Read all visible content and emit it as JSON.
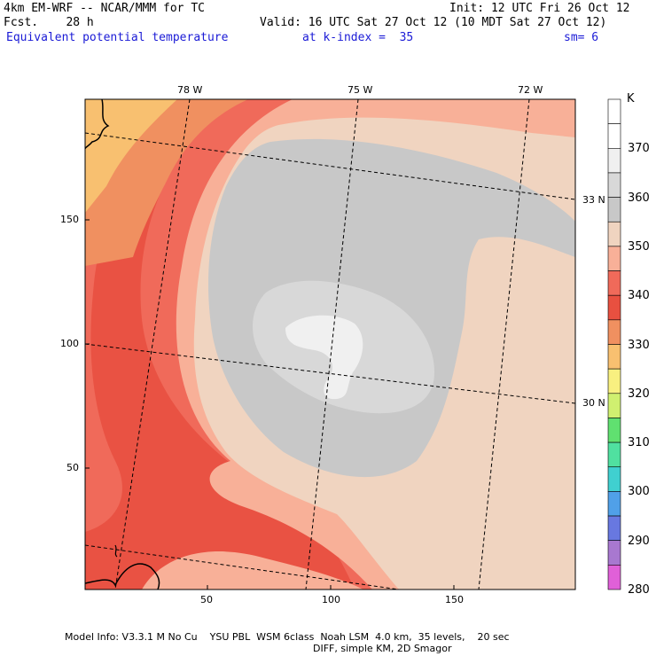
{
  "header": {
    "model": "4km EM-WRF -- NCAR/MMM for TC",
    "init": "Init: 12 UTC Fri 26 Oct 12",
    "fcst": "Fcst.    28 h",
    "valid": "Valid: 16 UTC Sat 27 Oct 12 (10 MDT Sat 27 Oct 12)",
    "field": "Equivalent potential temperature",
    "level": "at k-index =  35",
    "smooth": "sm= 6"
  },
  "map": {
    "lon_labels": [
      "78 W",
      "75 W",
      "72 W"
    ],
    "lat_labels": [
      "33 N",
      "30 N"
    ],
    "x_ticks": [
      "50",
      "100",
      "150"
    ],
    "y_ticks": [
      "150",
      "100",
      "50"
    ]
  },
  "colorbar": {
    "unit": "K",
    "labels": [
      "370",
      "360",
      "350",
      "340",
      "330",
      "320",
      "310",
      "300",
      "290",
      "280"
    ],
    "colors": [
      "#ffffff",
      "#ffffff",
      "#f0f0f0",
      "#d8d8d8",
      "#c8c8c8",
      "#f0d4c0",
      "#f8b098",
      "#f06a5a",
      "#e85040",
      "#f09060",
      "#f8c070",
      "#f8f080",
      "#d0f070",
      "#60e070",
      "#50e0a0",
      "#40d0d0",
      "#50a0e8",
      "#6878e0",
      "#a878d0",
      "#e060d8"
    ]
  },
  "footer": {
    "line1": "Model Info: V3.3.1 M No Cu    YSU PBL  WSM 6class  Noah LSM  4.0 km,  35 levels,    20 sec",
    "line2": "DIFF, simple KM, 2D Smagor"
  }
}
